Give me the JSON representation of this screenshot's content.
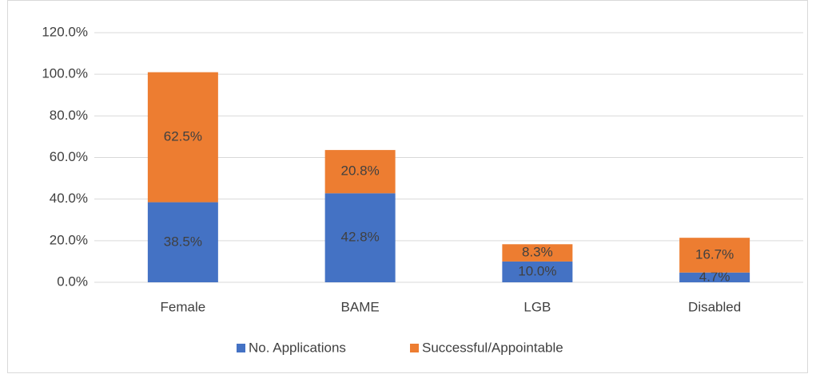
{
  "chart_data": {
    "type": "stacked_bar",
    "categories": [
      "Female",
      "BAME",
      "LGB",
      "Disabled"
    ],
    "series": [
      {
        "name": "No. Applications",
        "color": "#4472c4",
        "values": [
          38.5,
          42.8,
          10.0,
          4.7
        ],
        "value_labels": [
          "38.5%",
          "42.8%",
          "10.0%",
          "4.7%"
        ]
      },
      {
        "name": "Successful/Appointable",
        "color": "#ed7d31",
        "values": [
          62.5,
          20.8,
          8.3,
          16.7
        ],
        "value_labels": [
          "62.5%",
          "20.8%",
          "8.3%",
          "16.7%"
        ]
      }
    ],
    "ylim": [
      0,
      120
    ],
    "yticks": [
      {
        "value": 0,
        "label": "0.0%"
      },
      {
        "value": 20,
        "label": "20.0%"
      },
      {
        "value": 40,
        "label": "40.0%"
      },
      {
        "value": 60,
        "label": "60.0%"
      },
      {
        "value": 80,
        "label": "80.0%"
      },
      {
        "value": 100,
        "label": "100.0%"
      },
      {
        "value": 120,
        "label": "120.0%"
      }
    ],
    "grid": true,
    "legend": "bottom"
  }
}
